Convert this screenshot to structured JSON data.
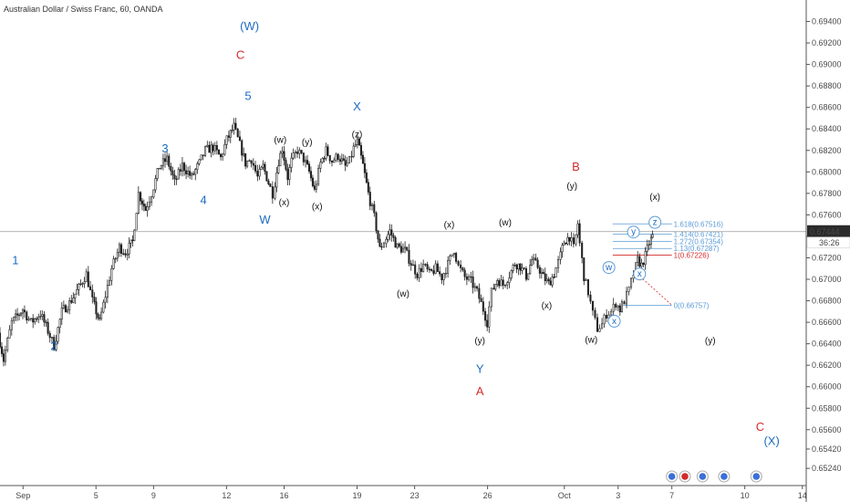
{
  "chart_data": {
    "type": "candlestick",
    "title": "Australian Dollar / Swiss Franc, 60, OANDA",
    "ylim": [
      0.6508,
      0.696
    ],
    "xlim_days": [
      0,
      105
    ],
    "y_ticks": [
      0.6524,
      0.6542,
      0.656,
      0.658,
      0.66,
      0.662,
      0.664,
      0.666,
      0.668,
      0.67,
      0.672,
      0.674,
      0.676,
      0.678,
      0.68,
      0.682,
      0.684,
      0.686,
      0.688,
      0.69,
      0.692,
      0.694
    ],
    "y_tick_labels": [
      "0.65240",
      "0.65420",
      "0.65600",
      "0.65800",
      "0.66000",
      "0.66200",
      "0.66400",
      "0.66600",
      "0.66800",
      "0.67000",
      "0.67200",
      "0.67400",
      "0.67600",
      "0.67800",
      "0.68000",
      "0.68200",
      "0.68400",
      "0.68600",
      "0.68800",
      "0.69000",
      "0.69200",
      "0.69400"
    ],
    "x_ticks": [
      {
        "label": "Sep",
        "day": 3
      },
      {
        "label": "5",
        "day": 12.5
      },
      {
        "label": "9",
        "day": 20
      },
      {
        "label": "12",
        "day": 29.5
      },
      {
        "label": "16",
        "day": 37
      },
      {
        "label": "19",
        "day": 46.5
      },
      {
        "label": "23",
        "day": 54
      },
      {
        "label": "26",
        "day": 63.5
      },
      {
        "label": "Oct",
        "day": 73.5
      },
      {
        "label": "3",
        "day": 80.5
      },
      {
        "label": "7",
        "day": 87.5
      },
      {
        "label": "10",
        "day": 97
      },
      {
        "label": "14",
        "day": 104.5
      }
    ],
    "price_path": [
      [
        0,
        0.665
      ],
      [
        0.7,
        0.6625
      ],
      [
        1.8,
        0.666
      ],
      [
        3.2,
        0.6672
      ],
      [
        4.3,
        0.666
      ],
      [
        5.5,
        0.6668
      ],
      [
        6.5,
        0.6652
      ],
      [
        7.3,
        0.6638
      ],
      [
        8.3,
        0.667
      ],
      [
        9.3,
        0.6678
      ],
      [
        10.5,
        0.6692
      ],
      [
        11.5,
        0.6705
      ],
      [
        12.3,
        0.668
      ],
      [
        13.2,
        0.666
      ],
      [
        14,
        0.6685
      ],
      [
        14.8,
        0.671
      ],
      [
        15.8,
        0.673
      ],
      [
        16.6,
        0.6725
      ],
      [
        17.5,
        0.6735
      ],
      [
        18.3,
        0.678
      ],
      [
        19.2,
        0.6765
      ],
      [
        20,
        0.678
      ],
      [
        21,
        0.6805
      ],
      [
        22,
        0.6812
      ],
      [
        23,
        0.679
      ],
      [
        24,
        0.6806
      ],
      [
        25.2,
        0.6795
      ],
      [
        26.2,
        0.6808
      ],
      [
        27,
        0.682
      ],
      [
        28,
        0.6823
      ],
      [
        29,
        0.6813
      ],
      [
        29.8,
        0.683
      ],
      [
        30.7,
        0.6842
      ],
      [
        31.5,
        0.6825
      ],
      [
        32.2,
        0.6808
      ],
      [
        33,
        0.6812
      ],
      [
        33.8,
        0.6795
      ],
      [
        34.5,
        0.6805
      ],
      [
        35.2,
        0.679
      ],
      [
        35.8,
        0.678
      ],
      [
        36.5,
        0.681
      ],
      [
        37,
        0.6822
      ],
      [
        37.7,
        0.6795
      ],
      [
        38.2,
        0.681
      ],
      [
        39,
        0.682
      ],
      [
        39.8,
        0.6812
      ],
      [
        40.5,
        0.68
      ],
      [
        41.2,
        0.6782
      ],
      [
        42,
        0.6808
      ],
      [
        42.7,
        0.682
      ],
      [
        43.5,
        0.681
      ],
      [
        44.3,
        0.6815
      ],
      [
        45.2,
        0.6805
      ],
      [
        45.8,
        0.681
      ],
      [
        46.3,
        0.6822
      ],
      [
        46.8,
        0.6828
      ],
      [
        47.5,
        0.6806
      ],
      [
        48.2,
        0.678
      ],
      [
        49,
        0.6758
      ],
      [
        49.7,
        0.6728
      ],
      [
        50.3,
        0.6735
      ],
      [
        51,
        0.6745
      ],
      [
        52,
        0.673
      ],
      [
        53,
        0.6727
      ],
      [
        53.8,
        0.6715
      ],
      [
        54.6,
        0.6705
      ],
      [
        55.4,
        0.6713
      ],
      [
        56.2,
        0.6705
      ],
      [
        57,
        0.671
      ],
      [
        57.8,
        0.6702
      ],
      [
        58.6,
        0.6714
      ],
      [
        59.4,
        0.6728
      ],
      [
        60,
        0.6712
      ],
      [
        60.8,
        0.6702
      ],
      [
        61.6,
        0.6698
      ],
      [
        62.4,
        0.6688
      ],
      [
        63.2,
        0.6672
      ],
      [
        63.7,
        0.666
      ],
      [
        64.3,
        0.6688
      ],
      [
        65,
        0.67
      ],
      [
        65.8,
        0.6695
      ],
      [
        66.6,
        0.6704
      ],
      [
        67.3,
        0.6715
      ],
      [
        68,
        0.6712
      ],
      [
        68.8,
        0.6703
      ],
      [
        69.5,
        0.6718
      ],
      [
        70.3,
        0.6712
      ],
      [
        71,
        0.6702
      ],
      [
        71.7,
        0.6696
      ],
      [
        72.4,
        0.6705
      ],
      [
        73,
        0.6716
      ],
      [
        73.7,
        0.6735
      ],
      [
        74.4,
        0.674
      ],
      [
        75,
        0.6729
      ],
      [
        75.5,
        0.6752
      ],
      [
        75.8,
        0.6733
      ],
      [
        76.3,
        0.6703
      ],
      [
        76.9,
        0.6688
      ],
      [
        77.5,
        0.6668
      ],
      [
        78.1,
        0.6654
      ],
      [
        78.7,
        0.6658
      ],
      [
        79.3,
        0.6668
      ],
      [
        79.9,
        0.667
      ],
      [
        80.5,
        0.6678
      ],
      [
        81,
        0.6672
      ],
      [
        81.6,
        0.668
      ],
      [
        82.2,
        0.669
      ],
      [
        82.8,
        0.6705
      ],
      [
        83.3,
        0.6718
      ],
      [
        83.8,
        0.6713
      ],
      [
        84.3,
        0.6722
      ],
      [
        84.8,
        0.6734
      ],
      [
        85.2,
        0.674
      ]
    ],
    "series": [
      {
        "name": "",
        "color": "#1e6bbf",
        "labels": [
          {
            "text": "(W)",
            "day": 32.5,
            "y": 0.6932
          },
          {
            "text": "5",
            "day": 32.3,
            "y": 0.6867
          },
          {
            "text": "3",
            "day": 21.5,
            "y": 0.6818
          },
          {
            "text": "4",
            "day": 26.5,
            "y": 0.677
          },
          {
            "text": "W",
            "day": 34.5,
            "y": 0.6752
          },
          {
            "text": "X",
            "day": 46.5,
            "y": 0.6857
          },
          {
            "text": "1",
            "day": 2,
            "y": 0.6714
          },
          {
            "text": "2",
            "day": 7,
            "y": 0.6634
          },
          {
            "text": "Y",
            "day": 62.5,
            "y": 0.6613
          },
          {
            "text": "(X)",
            "day": 100.5,
            "y": 0.6546
          }
        ]
      },
      {
        "name": "",
        "color": "#d42a2a",
        "labels": [
          {
            "text": "C",
            "day": 31.3,
            "y": 0.6905
          },
          {
            "text": "B",
            "day": 75,
            "y": 0.6801
          },
          {
            "text": "A",
            "day": 62.5,
            "y": 0.6592
          },
          {
            "text": "C",
            "day": 99,
            "y": 0.6559
          }
        ]
      },
      {
        "name": "",
        "color": "#111111",
        "labels": [
          {
            "text": "(w)",
            "day": 36.5,
            "y": 0.6827
          },
          {
            "text": "(y)",
            "day": 40,
            "y": 0.6825
          },
          {
            "text": "(z)",
            "day": 46.5,
            "y": 0.6832
          },
          {
            "text": "(x)",
            "day": 37,
            "y": 0.6769
          },
          {
            "text": "(x)",
            "day": 41.3,
            "y": 0.6765
          },
          {
            "text": "(y)",
            "day": 74.5,
            "y": 0.6784
          },
          {
            "text": "(x)",
            "day": 85.3,
            "y": 0.6774
          },
          {
            "text": "(x)",
            "day": 58.5,
            "y": 0.6748
          },
          {
            "text": "(w)",
            "day": 65.8,
            "y": 0.675
          },
          {
            "text": "(w)",
            "day": 52.5,
            "y": 0.6684
          },
          {
            "text": "(x)",
            "day": 71.2,
            "y": 0.6673
          },
          {
            "text": "(y)",
            "day": 62.5,
            "y": 0.664
          },
          {
            "text": "(w)",
            "day": 77,
            "y": 0.6641
          },
          {
            "text": "(y)",
            "day": 92.5,
            "y": 0.664
          }
        ]
      }
    ],
    "circled_labels": [
      {
        "text": "w",
        "day": 79.3,
        "y": 0.6711
      },
      {
        "text": "y",
        "day": 82.5,
        "y": 0.6744
      },
      {
        "text": "z",
        "day": 85.3,
        "y": 0.6753
      },
      {
        "text": "x",
        "day": 83.3,
        "y": 0.6705
      },
      {
        "text": "x",
        "day": 80,
        "y": 0.6661
      }
    ],
    "fib_levels": [
      {
        "label": "1.618(0.67516)",
        "value": 0.67516,
        "color": "#5b9bd5"
      },
      {
        "label": "1.414(0.67421)",
        "value": 0.67421,
        "color": "#5b9bd5"
      },
      {
        "label": "1.272(0.67354)",
        "value": 0.67354,
        "color": "#5b9bd5"
      },
      {
        "label": "1.13(0.67287)",
        "value": 0.67287,
        "color": "#5b9bd5"
      },
      {
        "label": "1(0.67226)",
        "value": 0.67226,
        "color": "#d42a2a"
      },
      {
        "label": "0(0.66757)",
        "value": 0.66757,
        "color": "#5b9bd5"
      }
    ],
    "last_price": {
      "value": 0.67444,
      "label": "0.67444",
      "countdown": "36:26",
      "color": "#2b2b2b"
    },
    "grid": false,
    "legend": "none"
  }
}
